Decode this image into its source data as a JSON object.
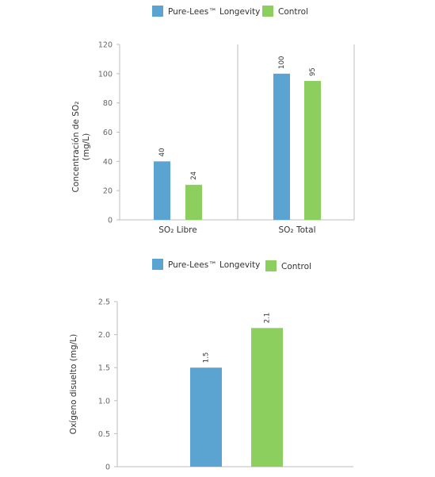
{
  "colors": {
    "pure_lees": "#5ba3d0",
    "control": "#8ccf5e",
    "axis": "#bdbdbd"
  },
  "chart_data": [
    {
      "type": "bar",
      "categories": [
        "SO₂ Libre",
        "SO₂ Total"
      ],
      "series": [
        {
          "name": "Pure-Lees™ Longevity",
          "values": [
            40,
            100
          ]
        },
        {
          "name": "Control",
          "values": [
            24,
            95
          ]
        }
      ],
      "data_labels": [
        [
          "40",
          "100"
        ],
        [
          "24",
          "95"
        ]
      ],
      "ylabel_lines": [
        "Concentración de SO₂",
        "(mg/L)"
      ],
      "ylim": [
        0,
        120
      ],
      "yticks": [
        "0",
        "20",
        "40",
        "60",
        "80",
        "100",
        "120"
      ],
      "legend_position": "top",
      "grid": false
    },
    {
      "type": "bar",
      "categories": [
        ""
      ],
      "series": [
        {
          "name": "Pure-Lees™ Longevity",
          "values": [
            1.5
          ]
        },
        {
          "name": "Control",
          "values": [
            2.1
          ]
        }
      ],
      "data_labels": [
        [
          "1.5"
        ],
        [
          "2.1"
        ]
      ],
      "ylabel_lines": [
        "Oxígeno disuelto (mg/L)"
      ],
      "ylim": [
        0,
        2.5
      ],
      "yticks": [
        "0",
        "0.5",
        "1.0",
        "1.5",
        "2.0",
        "2.5"
      ],
      "legend_position": "top",
      "grid": false
    }
  ]
}
